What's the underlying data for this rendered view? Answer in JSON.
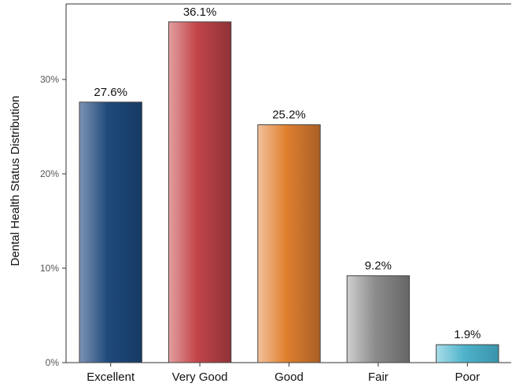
{
  "chart_data": {
    "type": "bar",
    "title": "",
    "xlabel": "",
    "ylabel": "Dental Health Status Distribution",
    "ylim": [
      0,
      38
    ],
    "yticks": [
      0,
      10,
      20,
      30
    ],
    "ytick_labels": [
      "0%",
      "10%",
      "20%",
      "30%"
    ],
    "grid": false,
    "categories": [
      "Excellent",
      "Very Good",
      "Good",
      "Fair",
      "Poor"
    ],
    "values": [
      27.6,
      36.1,
      25.2,
      9.2,
      1.9
    ],
    "data_labels": [
      "27.6%",
      "36.1%",
      "25.2%",
      "9.2%",
      "1.9%"
    ],
    "colors": [
      {
        "light": "#7d93b4",
        "base": "#1f4a7c",
        "dark": "#163a63"
      },
      {
        "light": "#e2a0a0",
        "base": "#c3454a",
        "dark": "#8e3337"
      },
      {
        "light": "#f2c29b",
        "base": "#e0802f",
        "dark": "#a85f25"
      },
      {
        "light": "#cfcfcf",
        "base": "#8c8c8c",
        "dark": "#666666"
      },
      {
        "light": "#a9dde8",
        "base": "#4fb3cb",
        "dark": "#3a93aa"
      }
    ]
  }
}
